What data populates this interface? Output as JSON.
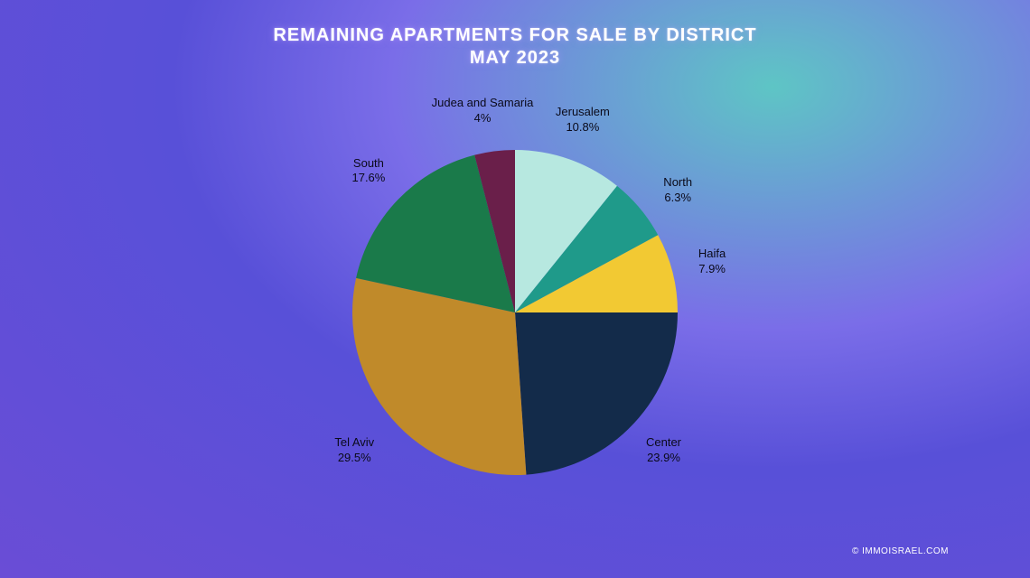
{
  "title": {
    "line1": "REMAINING APARTMENTS FOR SALE BY DISTRICT",
    "line2": "MAY 2023",
    "color": "#ffffff",
    "fontsize": 20
  },
  "copyright": "© IMMOISRAEL.COM",
  "chart": {
    "type": "pie",
    "radius": 180,
    "start_angle_deg": -90,
    "background_gradient": [
      "#5ec5c5",
      "#7a6de8",
      "#5850d8",
      "#6a4dd6"
    ],
    "label_fontsize": 13,
    "label_color": "#0a0a1a",
    "slices": [
      {
        "name": "Jerusalem",
        "value": 10.8,
        "color": "#b7e8e0",
        "label_r": 225,
        "label_angle_offset": 0
      },
      {
        "name": "North",
        "value": 6.3,
        "color": "#1f9a8a",
        "label_r": 225,
        "label_angle_offset": 3
      },
      {
        "name": "Haifa",
        "value": 7.9,
        "color": "#f2c933",
        "label_r": 225,
        "label_angle_offset": 0
      },
      {
        "name": "Center",
        "value": 23.9,
        "color": "#132b4a",
        "label_r": 225,
        "label_angle_offset": 0
      },
      {
        "name": "Tel Aviv",
        "value": 29.5,
        "color": "#c08a2a",
        "label_r": 235,
        "label_angle_offset": 0
      },
      {
        "name": "South",
        "value": 17.6,
        "color": "#1a7a4a",
        "label_r": 225,
        "label_angle_offset": 0
      },
      {
        "name": "Judea and Samaria",
        "value": 4.0,
        "color": "#6a1f4a",
        "label_r": 225,
        "label_angle_offset": -2
      }
    ]
  }
}
